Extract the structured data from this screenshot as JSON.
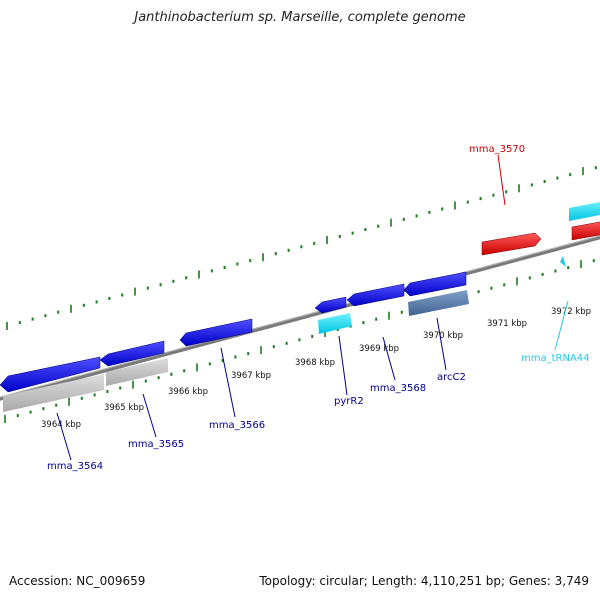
{
  "title": "Janthinobacterium sp. Marseille, complete genome",
  "axis": {
    "kbp": [
      "3964 kbp",
      "3965 kbp",
      "3966 kbp",
      "3967 kbp",
      "3968 kbp",
      "3969 kbp",
      "3970 kbp",
      "3971 kbp",
      "3972 kbp"
    ]
  },
  "features": [
    {
      "label": "mma_3564",
      "color": "#00008b"
    },
    {
      "label": "mma_3565",
      "color": "#00008b"
    },
    {
      "label": "mma_3566",
      "color": "#00008b"
    },
    {
      "label": "pyrR2",
      "color": "#00008b"
    },
    {
      "label": "mma_3568",
      "color": "#00008b"
    },
    {
      "label": "arcC2",
      "color": "#00008b"
    },
    {
      "label": "mma_tRNA44",
      "color": "#28c6e8"
    },
    {
      "label": "mma_3570",
      "color": "#cc0000"
    }
  ],
  "colors": {
    "forward_strand": "#e00000",
    "reverse_strand": "#0000dd",
    "rna": "#00d8f0",
    "tick": "#1a7a1a",
    "backbone": "#7a7a7a"
  },
  "footer": {
    "accession": "Accession: NC_009659",
    "topology": "Topology: circular; Length: 4,110,251 bp; Genes: 3,749"
  }
}
